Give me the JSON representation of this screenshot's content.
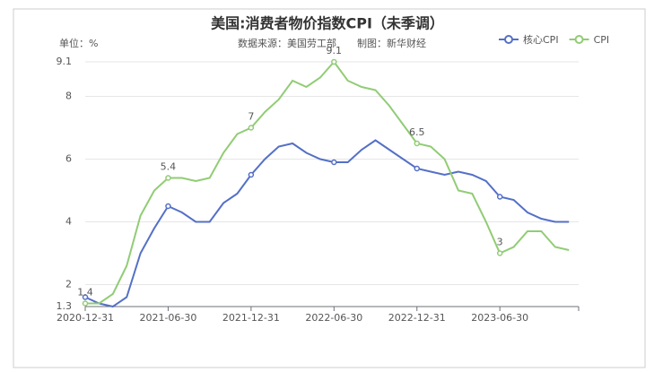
{
  "chart_data": {
    "type": "line",
    "title": "美国:消费者物价指数CPI（未季调）",
    "unit_label": "单位：%",
    "source": "数据来源：美国劳工部",
    "credit": "制图：新华财经",
    "categories": [
      "2020-12-31",
      null,
      null,
      null,
      null,
      null,
      "2021-06-30",
      null,
      null,
      null,
      null,
      null,
      "2021-12-31",
      null,
      null,
      null,
      null,
      null,
      "2022-06-30",
      null,
      null,
      null,
      null,
      null,
      "2022-12-31",
      null,
      null,
      null,
      null,
      null,
      "2023-06-30",
      null,
      null,
      null,
      null,
      null
    ],
    "series": [
      {
        "name": "核心CPI",
        "color": "#5470c6",
        "show_labels": false,
        "values": [
          1.6,
          1.4,
          1.3,
          1.6,
          3.0,
          3.8,
          4.5,
          4.3,
          4.0,
          4.0,
          4.6,
          4.9,
          5.5,
          6.0,
          6.4,
          6.5,
          6.2,
          6.0,
          5.9,
          5.9,
          6.3,
          6.6,
          6.3,
          6.0,
          5.7,
          5.6,
          5.5,
          5.6,
          5.5,
          5.3,
          4.8,
          4.7,
          4.3,
          4.1,
          4.0,
          4.0
        ]
      },
      {
        "name": "CPI",
        "color": "#91cc75",
        "show_labels": true,
        "values": [
          1.4,
          1.4,
          1.7,
          2.6,
          4.2,
          5.0,
          5.4,
          5.4,
          5.3,
          5.4,
          6.2,
          6.8,
          7,
          7.5,
          7.9,
          8.5,
          8.3,
          8.6,
          9.1,
          8.5,
          8.3,
          8.2,
          7.7,
          7.1,
          6.5,
          6.4,
          6.0,
          5.0,
          4.9,
          4.0,
          3,
          3.2,
          3.7,
          3.7,
          3.2,
          3.1
        ]
      }
    ],
    "ylim": [
      1.3,
      9.1
    ],
    "yticks": [
      1.3,
      2,
      4,
      6,
      8,
      9.1
    ],
    "grid": true,
    "legend": "top-right"
  }
}
